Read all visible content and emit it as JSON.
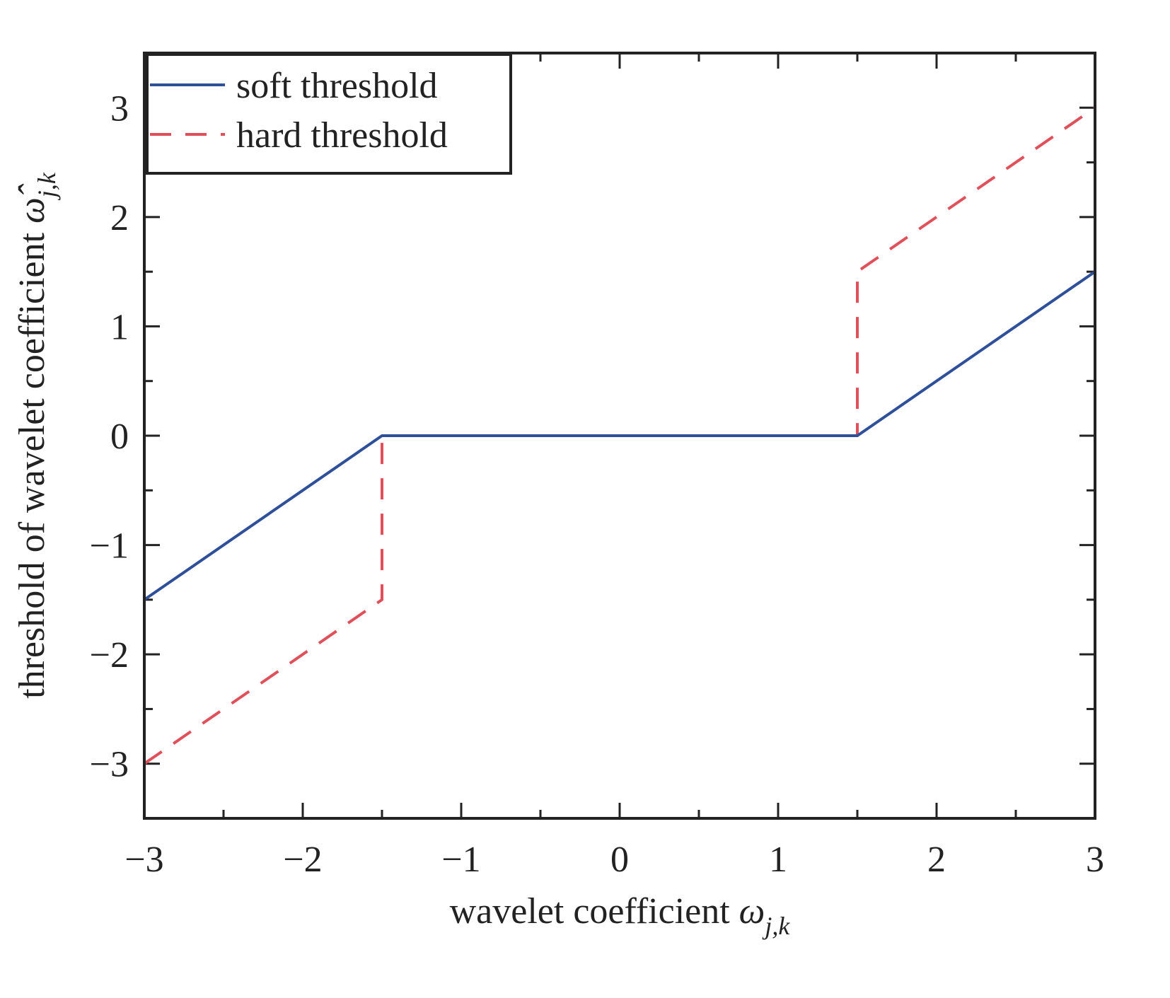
{
  "chart_data": {
    "type": "line",
    "xlabel": "wavelet coefficient ",
    "xlabel_symbol": "ω",
    "xlabel_subscript": "j,k",
    "ylabel": "threshold of wavelet coefficient ",
    "ylabel_symbol": "ω̂",
    "ylabel_subscript": "j,k",
    "xlim": [
      -3,
      3
    ],
    "ylim": [
      -3.5,
      3.5
    ],
    "x_ticks": [
      -3,
      -2,
      -1,
      0,
      1,
      2,
      3
    ],
    "x_tick_labels": [
      "−3",
      "−2",
      "−1",
      "0",
      "1",
      "2",
      "3"
    ],
    "y_ticks": [
      -3,
      -2,
      -1,
      0,
      1,
      2,
      3
    ],
    "y_tick_labels": [
      "−3",
      "−2",
      "−1",
      "0",
      "1",
      "2",
      "3"
    ],
    "x_minor_ticks": [
      -2.5,
      -1.5,
      -0.5,
      0.5,
      1.5,
      2.5
    ],
    "y_minor_ticks": [
      -2.5,
      -1.5,
      -0.5,
      0.5,
      1.5,
      2.5
    ],
    "grid": false,
    "legend_position": "top-left",
    "series": [
      {
        "name": "soft threshold",
        "color": "#2e4f9a",
        "style": "solid",
        "x": [
          -3,
          -1.5,
          1.5,
          3
        ],
        "y": [
          -1.5,
          0,
          0,
          1.5
        ]
      },
      {
        "name": "hard threshold",
        "color": "#e0505a",
        "style": "dashed",
        "x": [
          -3,
          -1.5,
          -1.5,
          1.5,
          1.5,
          3
        ],
        "y": [
          -3,
          -1.5,
          0,
          0,
          1.5,
          3
        ]
      }
    ]
  }
}
